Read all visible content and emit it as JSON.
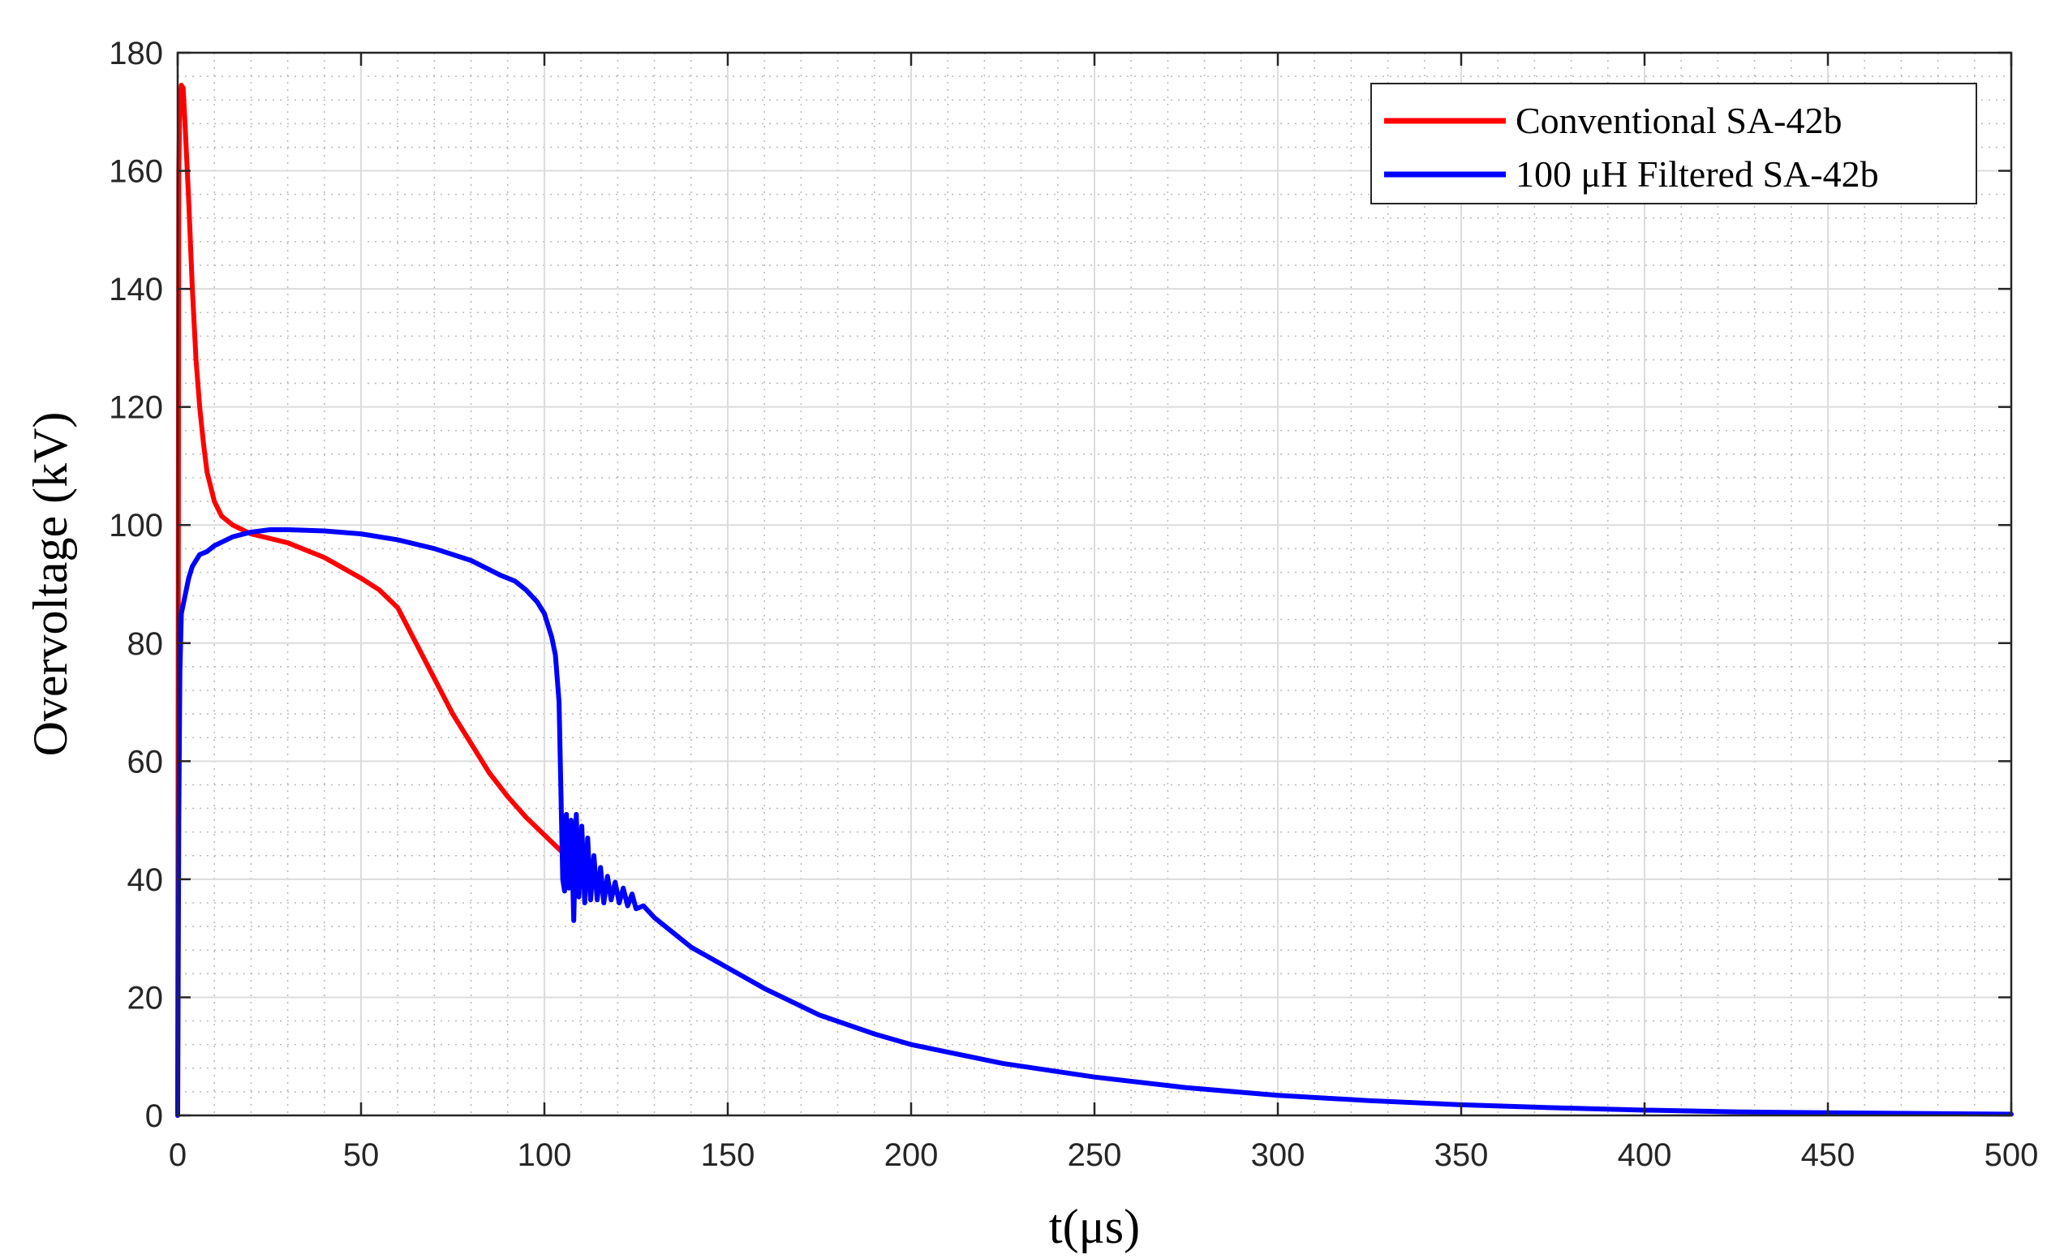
{
  "chart_data": {
    "type": "line",
    "title": "",
    "xlabel": "t(μs)",
    "ylabel": "Overvoltage (kV)",
    "xlim": [
      0,
      500
    ],
    "ylim": [
      0,
      180
    ],
    "xticks": [
      0,
      50,
      100,
      150,
      200,
      250,
      300,
      350,
      400,
      450,
      500
    ],
    "yticks": [
      0,
      20,
      40,
      60,
      80,
      100,
      120,
      140,
      160,
      180
    ],
    "grid": "major and minor",
    "legend_position": "top-right",
    "series": [
      {
        "name": "Conventional SA-42b",
        "color": "#ff0000",
        "points": [
          [
            0,
            0
          ],
          [
            0.3,
            160
          ],
          [
            0.6,
            172
          ],
          [
            1,
            174.5
          ],
          [
            1.5,
            174
          ],
          [
            2,
            168
          ],
          [
            3,
            155
          ],
          [
            4,
            140
          ],
          [
            5,
            128
          ],
          [
            6,
            120
          ],
          [
            7,
            114
          ],
          [
            8,
            109
          ],
          [
            10,
            104
          ],
          [
            12,
            101.5
          ],
          [
            15,
            100
          ],
          [
            20,
            98.5
          ],
          [
            30,
            97
          ],
          [
            40,
            94.5
          ],
          [
            50,
            91
          ],
          [
            55,
            89
          ],
          [
            60,
            86
          ],
          [
            65,
            80
          ],
          [
            70,
            74
          ],
          [
            75,
            68
          ],
          [
            80,
            63
          ],
          [
            85,
            58
          ],
          [
            90,
            54
          ],
          [
            95,
            50.5
          ],
          [
            100,
            47.5
          ],
          [
            105,
            44.5
          ]
        ]
      },
      {
        "name": "100 μH Filtered SA-42b",
        "color": "#0000ff",
        "points": [
          [
            0,
            0
          ],
          [
            0.3,
            50
          ],
          [
            0.6,
            75
          ],
          [
            1,
            85
          ],
          [
            2,
            88
          ],
          [
            3,
            91
          ],
          [
            4,
            93
          ],
          [
            5,
            94
          ],
          [
            6,
            95
          ],
          [
            8,
            95.5
          ],
          [
            10,
            96.5
          ],
          [
            15,
            98
          ],
          [
            20,
            98.8
          ],
          [
            25,
            99.2
          ],
          [
            30,
            99.2
          ],
          [
            40,
            99
          ],
          [
            50,
            98.5
          ],
          [
            60,
            97.5
          ],
          [
            70,
            96
          ],
          [
            80,
            94
          ],
          [
            88,
            91.5
          ],
          [
            92,
            90.5
          ],
          [
            95,
            89
          ],
          [
            98,
            87
          ],
          [
            100,
            85
          ],
          [
            102,
            81
          ],
          [
            103,
            78
          ],
          [
            104,
            70
          ],
          [
            104.5,
            55
          ],
          [
            105,
            40
          ],
          [
            105.5,
            38
          ],
          [
            106,
            51
          ],
          [
            106.7,
            38.5
          ],
          [
            107.3,
            50
          ],
          [
            108,
            33
          ],
          [
            108.7,
            51
          ],
          [
            109.4,
            37
          ],
          [
            110.2,
            49
          ],
          [
            111,
            36
          ],
          [
            111.8,
            47
          ],
          [
            112.6,
            36.5
          ],
          [
            113.5,
            44
          ],
          [
            114.4,
            36.5
          ],
          [
            115.3,
            42
          ],
          [
            116.2,
            36
          ],
          [
            117.2,
            40.5
          ],
          [
            118.2,
            36.5
          ],
          [
            119.3,
            39.5
          ],
          [
            120.4,
            36
          ],
          [
            121.5,
            38.5
          ],
          [
            122.7,
            35.5
          ],
          [
            123.9,
            37.5
          ],
          [
            125,
            35
          ],
          [
            127,
            35.5
          ],
          [
            130,
            33.5
          ],
          [
            135,
            31
          ],
          [
            140,
            28.5
          ],
          [
            150,
            25
          ],
          [
            160,
            21.5
          ],
          [
            175,
            17
          ],
          [
            190,
            13.8
          ],
          [
            200,
            12
          ],
          [
            225,
            8.8
          ],
          [
            250,
            6.5
          ],
          [
            275,
            4.7
          ],
          [
            300,
            3.4
          ],
          [
            325,
            2.5
          ],
          [
            350,
            1.8
          ],
          [
            375,
            1.3
          ],
          [
            400,
            0.9
          ],
          [
            425,
            0.6
          ],
          [
            450,
            0.45
          ],
          [
            475,
            0.32
          ],
          [
            500,
            0.2
          ]
        ]
      }
    ]
  }
}
